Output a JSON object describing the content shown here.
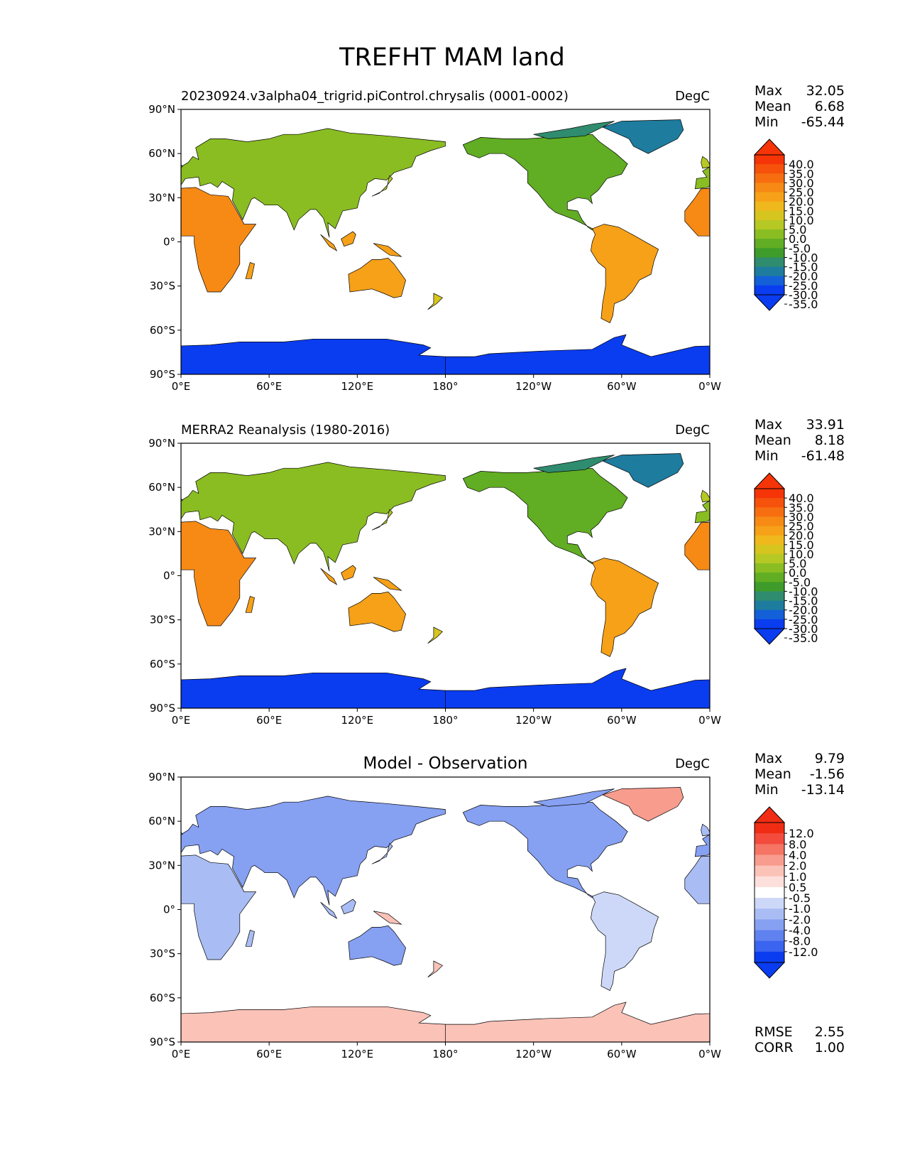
{
  "figure": {
    "title": "TREFHT MAM land"
  },
  "colors": {
    "abs_scale": [
      "#0a3cf0",
      "#1460d8",
      "#1e7c9e",
      "#2f8c6e",
      "#3f9c2a",
      "#61ad23",
      "#8abd22",
      "#b6c824",
      "#d6c51e",
      "#efb81c",
      "#f6a118",
      "#f78a14",
      "#f76e10",
      "#f6520c",
      "#f53408"
    ],
    "diff_scale": [
      "#0a3cf0",
      "#3b64f0",
      "#5f82f0",
      "#86a0f2",
      "#a9bdf4",
      "#cdd8f8",
      "#ffffff",
      "#fde0dc",
      "#fbc2b8",
      "#f89c8e",
      "#f57464",
      "#f34b3c",
      "#f02c14"
    ],
    "land_coast": "#000000"
  },
  "panels": [
    {
      "id": "model",
      "title": "20230924.v3alpha04_trigrid.piControl.chrysalis (0001-0002)",
      "units": "DegC",
      "stats": [
        {
          "label": "Max",
          "value": "32.05"
        },
        {
          "label": "Mean",
          "value": "6.68"
        },
        {
          "label": "Min",
          "value": "-65.44"
        }
      ],
      "colorbar_labels": [
        "40.0",
        "35.0",
        "30.0",
        "25.0",
        "20.0",
        "15.0",
        "10.0",
        "5.0",
        "0.0",
        "-5.0",
        "-10.0",
        "-15.0",
        "-20.0",
        "-25.0",
        "-30.0",
        "-35.0"
      ],
      "scale": "abs"
    },
    {
      "id": "obs",
      "title": "MERRA2 Reanalysis (1980-2016)",
      "units": "DegC",
      "stats": [
        {
          "label": "Max",
          "value": "33.91"
        },
        {
          "label": "Mean",
          "value": "8.18"
        },
        {
          "label": "Min",
          "value": "-61.48"
        }
      ],
      "colorbar_labels": [
        "40.0",
        "35.0",
        "30.0",
        "25.0",
        "20.0",
        "15.0",
        "10.0",
        "5.0",
        "0.0",
        "-5.0",
        "-10.0",
        "-15.0",
        "-20.0",
        "-25.0",
        "-30.0",
        "-35.0"
      ],
      "scale": "abs"
    },
    {
      "id": "diff",
      "title": "Model - Observation",
      "units": "DegC",
      "stats": [
        {
          "label": "Max",
          "value": "9.79"
        },
        {
          "label": "Mean",
          "value": "-1.56"
        },
        {
          "label": "Min",
          "value": "-13.14"
        }
      ],
      "colorbar_labels": [
        "12.0",
        "8.0",
        "4.0",
        "2.0",
        "1.0",
        "0.5",
        "-0.5",
        "-1.0",
        "-2.0",
        "-4.0",
        "-8.0",
        "-12.0"
      ],
      "scale": "diff",
      "extra_stats": [
        {
          "label": "RMSE",
          "value": "2.55"
        },
        {
          "label": "CORR",
          "value": "1.00"
        }
      ]
    }
  ],
  "axes": {
    "lat_labels": [
      "90°N",
      "60°N",
      "30°N",
      "0°",
      "30°S",
      "60°S",
      "90°S"
    ],
    "lon_labels": [
      "0°E",
      "60°E",
      "120°E",
      "180°",
      "120°W",
      "60°W",
      "0°W"
    ]
  }
}
